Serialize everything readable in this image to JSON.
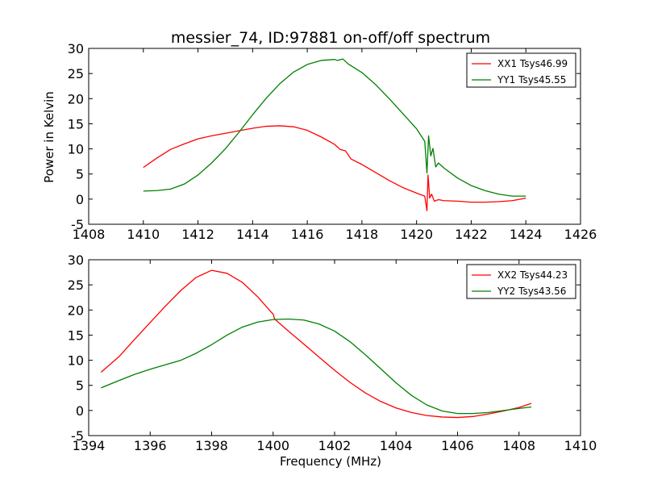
{
  "chart_data": [
    {
      "type": "line",
      "title": "messier_74, ID:97881 on-off/off spectrum",
      "xlabel": "",
      "ylabel": "Power in Kelvin",
      "xlim": [
        1408,
        1426
      ],
      "ylim": [
        -5,
        30
      ],
      "xticks": [
        1408,
        1410,
        1412,
        1414,
        1416,
        1418,
        1420,
        1422,
        1424,
        1426
      ],
      "yticks": [
        -5,
        0,
        5,
        10,
        15,
        20,
        25,
        30
      ],
      "grid": false,
      "legend_position": "top-right",
      "series": [
        {
          "name": "XX1 Tsys46.99",
          "color": "#ff0000",
          "points": [
            [
              1410.0,
              6.3
            ],
            [
              1410.5,
              8.2
            ],
            [
              1411.0,
              9.9
            ],
            [
              1411.5,
              11.0
            ],
            [
              1412.0,
              12.0
            ],
            [
              1412.5,
              12.6
            ],
            [
              1413.0,
              13.1
            ],
            [
              1413.5,
              13.6
            ],
            [
              1414.0,
              14.1
            ],
            [
              1414.5,
              14.5
            ],
            [
              1415.0,
              14.6
            ],
            [
              1415.5,
              14.4
            ],
            [
              1416.0,
              13.7
            ],
            [
              1416.5,
              12.4
            ],
            [
              1417.0,
              10.9
            ],
            [
              1417.2,
              9.9
            ],
            [
              1417.4,
              9.6
            ],
            [
              1417.6,
              8.0
            ],
            [
              1418.0,
              6.9
            ],
            [
              1418.5,
              5.3
            ],
            [
              1419.0,
              3.7
            ],
            [
              1419.5,
              2.3
            ],
            [
              1420.0,
              1.2
            ],
            [
              1420.3,
              0.6
            ],
            [
              1420.38,
              -2.3
            ],
            [
              1420.42,
              4.8
            ],
            [
              1420.48,
              0.2
            ],
            [
              1420.55,
              1.0
            ],
            [
              1420.65,
              -0.4
            ],
            [
              1420.8,
              -0.1
            ],
            [
              1421.0,
              -0.3
            ],
            [
              1421.5,
              -0.4
            ],
            [
              1422.0,
              -0.6
            ],
            [
              1422.5,
              -0.6
            ],
            [
              1423.0,
              -0.5
            ],
            [
              1423.5,
              -0.3
            ],
            [
              1424.0,
              0.2
            ]
          ]
        },
        {
          "name": "YY1 Tsys45.55",
          "color": "#008000",
          "points": [
            [
              1410.0,
              1.6
            ],
            [
              1410.5,
              1.7
            ],
            [
              1411.0,
              2.0
            ],
            [
              1411.5,
              3.0
            ],
            [
              1412.0,
              4.8
            ],
            [
              1412.5,
              7.2
            ],
            [
              1413.0,
              10.0
            ],
            [
              1413.5,
              13.3
            ],
            [
              1414.0,
              16.8
            ],
            [
              1414.5,
              20.1
            ],
            [
              1415.0,
              23.0
            ],
            [
              1415.5,
              25.3
            ],
            [
              1416.0,
              26.8
            ],
            [
              1416.5,
              27.6
            ],
            [
              1417.0,
              27.8
            ],
            [
              1417.1,
              27.6
            ],
            [
              1417.3,
              27.9
            ],
            [
              1417.5,
              26.9
            ],
            [
              1418.0,
              25.2
            ],
            [
              1418.5,
              22.8
            ],
            [
              1419.0,
              20.0
            ],
            [
              1419.5,
              17.0
            ],
            [
              1420.0,
              14.0
            ],
            [
              1420.3,
              11.5
            ],
            [
              1420.38,
              5.2
            ],
            [
              1420.44,
              12.6
            ],
            [
              1420.52,
              8.6
            ],
            [
              1420.6,
              10.1
            ],
            [
              1420.7,
              6.4
            ],
            [
              1420.8,
              7.2
            ],
            [
              1421.0,
              6.2
            ],
            [
              1421.5,
              4.2
            ],
            [
              1422.0,
              2.7
            ],
            [
              1422.5,
              1.7
            ],
            [
              1423.0,
              1.0
            ],
            [
              1423.5,
              0.6
            ],
            [
              1424.0,
              0.6
            ]
          ]
        }
      ]
    },
    {
      "type": "line",
      "title": "",
      "xlabel": "Frequency (MHz)",
      "ylabel": "",
      "xlim": [
        1394,
        1410
      ],
      "ylim": [
        -5,
        30
      ],
      "xticks": [
        1394,
        1396,
        1398,
        1400,
        1402,
        1404,
        1406,
        1408,
        1410
      ],
      "yticks": [
        -5,
        0,
        5,
        10,
        15,
        20,
        25,
        30
      ],
      "grid": false,
      "legend_position": "top-right",
      "series": [
        {
          "name": "XX2 Tsys44.23",
          "color": "#ff0000",
          "points": [
            [
              1394.4,
              7.6
            ],
            [
              1395.0,
              10.8
            ],
            [
              1395.5,
              14.2
            ],
            [
              1396.0,
              17.5
            ],
            [
              1396.5,
              20.8
            ],
            [
              1397.0,
              23.9
            ],
            [
              1397.5,
              26.5
            ],
            [
              1398.0,
              27.9
            ],
            [
              1398.5,
              27.3
            ],
            [
              1399.0,
              25.5
            ],
            [
              1399.5,
              22.6
            ],
            [
              1399.95,
              19.5
            ],
            [
              1400.0,
              19.2
            ],
            [
              1400.05,
              18.2
            ],
            [
              1400.5,
              15.8
            ],
            [
              1401.0,
              13.2
            ],
            [
              1401.5,
              10.6
            ],
            [
              1402.0,
              8.0
            ],
            [
              1402.5,
              5.6
            ],
            [
              1403.0,
              3.5
            ],
            [
              1403.5,
              1.8
            ],
            [
              1404.0,
              0.5
            ],
            [
              1404.5,
              -0.4
            ],
            [
              1405.0,
              -1.0
            ],
            [
              1405.5,
              -1.3
            ],
            [
              1406.0,
              -1.4
            ],
            [
              1406.5,
              -1.2
            ],
            [
              1407.0,
              -0.7
            ],
            [
              1407.5,
              -0.1
            ],
            [
              1408.0,
              0.6
            ],
            [
              1408.4,
              1.4
            ]
          ]
        },
        {
          "name": "YY2 Tsys43.56",
          "color": "#008000",
          "points": [
            [
              1394.4,
              4.5
            ],
            [
              1395.0,
              6.0
            ],
            [
              1395.5,
              7.2
            ],
            [
              1396.0,
              8.2
            ],
            [
              1396.5,
              9.1
            ],
            [
              1397.0,
              10.0
            ],
            [
              1397.5,
              11.4
            ],
            [
              1398.0,
              13.1
            ],
            [
              1398.5,
              15.0
            ],
            [
              1399.0,
              16.6
            ],
            [
              1399.5,
              17.6
            ],
            [
              1400.0,
              18.1
            ],
            [
              1400.5,
              18.2
            ],
            [
              1401.0,
              18.0
            ],
            [
              1401.5,
              17.2
            ],
            [
              1402.0,
              15.8
            ],
            [
              1402.5,
              13.7
            ],
            [
              1403.0,
              11.1
            ],
            [
              1403.5,
              8.3
            ],
            [
              1404.0,
              5.5
            ],
            [
              1404.5,
              3.0
            ],
            [
              1405.0,
              1.1
            ],
            [
              1405.5,
              -0.1
            ],
            [
              1406.0,
              -0.6
            ],
            [
              1406.5,
              -0.6
            ],
            [
              1407.0,
              -0.4
            ],
            [
              1407.5,
              0.0
            ],
            [
              1408.0,
              0.4
            ],
            [
              1408.4,
              0.7
            ]
          ]
        }
      ]
    }
  ]
}
